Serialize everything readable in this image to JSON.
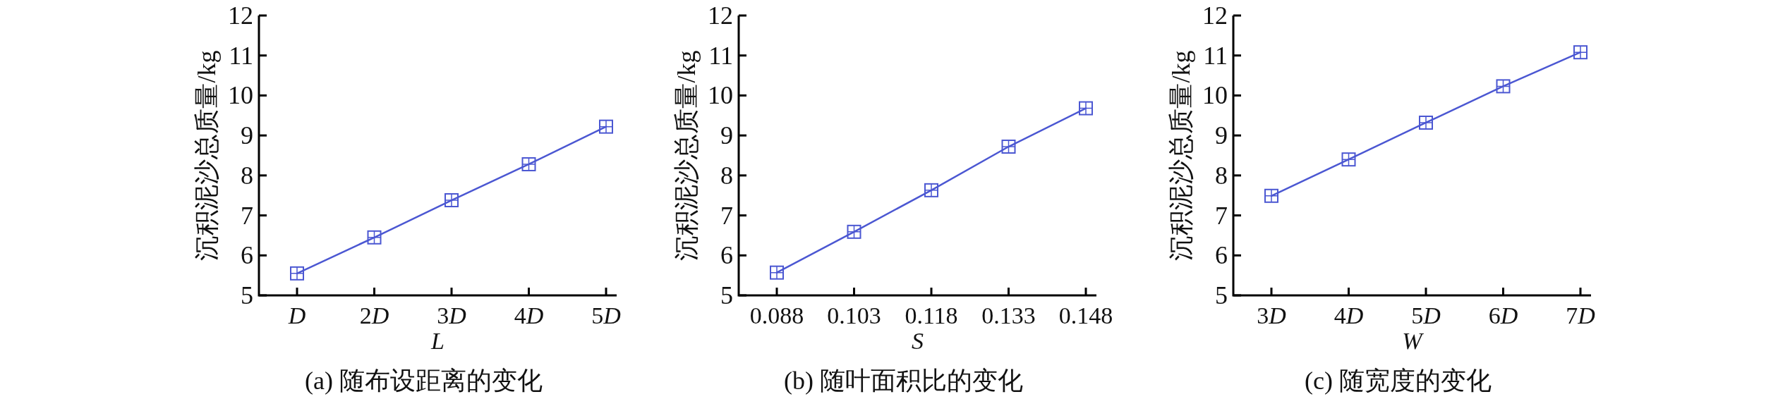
{
  "chart_data": [
    {
      "type": "line",
      "title": "(a) 随布设距离的变化",
      "xlabel": "L",
      "ylabel": "沉积泥沙总质量/kg",
      "categories": [
        "D",
        "2D",
        "3D",
        "4D",
        "5D"
      ],
      "series": [
        {
          "color": "#4b57d2",
          "values": [
            5.55,
            6.45,
            7.38,
            8.28,
            9.22
          ]
        }
      ],
      "ylim": [
        5,
        12
      ],
      "yticks": [
        5,
        6,
        7,
        8,
        9,
        10,
        11,
        12
      ],
      "marker": "square",
      "line_style": "solid"
    },
    {
      "type": "line",
      "title": "(b) 随叶面积比的变化",
      "xlabel": "S",
      "ylabel": "沉积泥沙总质量/kg",
      "categories": [
        "0.088",
        "0.103",
        "0.118",
        "0.133",
        "0.148"
      ],
      "series": [
        {
          "color": "#4b57d2",
          "values": [
            5.57,
            6.59,
            7.63,
            8.72,
            9.68
          ]
        }
      ],
      "ylim": [
        5,
        12
      ],
      "yticks": [
        5,
        6,
        7,
        8,
        9,
        10,
        11,
        12
      ],
      "marker": "square",
      "line_style": "solid"
    },
    {
      "type": "line",
      "title": "(c) 随宽度的变化",
      "xlabel": "W",
      "ylabel": "沉积泥沙总质量/kg",
      "categories": [
        "3D",
        "4D",
        "5D",
        "6D",
        "7D"
      ],
      "series": [
        {
          "color": "#4b57d2",
          "values": [
            7.49,
            8.4,
            9.32,
            10.23,
            11.08
          ]
        }
      ],
      "ylim": [
        5,
        12
      ],
      "yticks": [
        5,
        6,
        7,
        8,
        9,
        10,
        11,
        12
      ],
      "marker": "square",
      "line_style": "solid"
    }
  ]
}
